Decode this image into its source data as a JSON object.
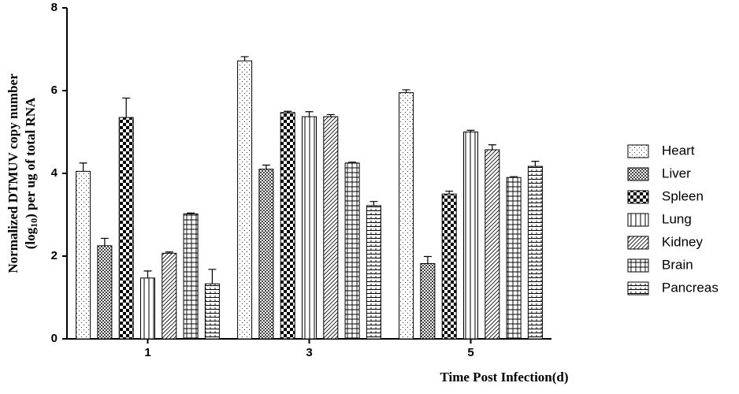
{
  "chart_data": {
    "type": "bar",
    "x_label": "Time Post Infection(d)",
    "y_label": [
      "Normalized DTMUV copy number",
      "(log",
      "10",
      ") per ug of total RNA"
    ],
    "categories": [
      "1",
      "3",
      "5"
    ],
    "series": [
      {
        "name": "Heart",
        "values": [
          4.05,
          6.72,
          5.95
        ],
        "errors": [
          0.2,
          0.1,
          0.07
        ]
      },
      {
        "name": "Liver",
        "values": [
          2.25,
          4.1,
          1.82
        ],
        "errors": [
          0.18,
          0.1,
          0.17
        ]
      },
      {
        "name": "Spleen",
        "values": [
          5.35,
          5.47,
          3.5
        ],
        "errors": [
          0.47,
          0.03,
          0.07
        ]
      },
      {
        "name": "Lung",
        "values": [
          1.47,
          5.37,
          5.0
        ],
        "errors": [
          0.17,
          0.12,
          0.04
        ]
      },
      {
        "name": "Kidney",
        "values": [
          2.07,
          5.37,
          4.57
        ],
        "errors": [
          0.03,
          0.05,
          0.12
        ]
      },
      {
        "name": "Brain",
        "values": [
          3.02,
          4.25,
          3.9
        ],
        "errors": [
          0.02,
          0.02,
          0.02
        ]
      },
      {
        "name": "Pancreas",
        "values": [
          1.33,
          3.22,
          4.17
        ],
        "errors": [
          0.35,
          0.1,
          0.12
        ]
      }
    ],
    "ylim": [
      0,
      8
    ],
    "yticks": [
      0,
      2,
      4,
      6,
      8
    ]
  }
}
